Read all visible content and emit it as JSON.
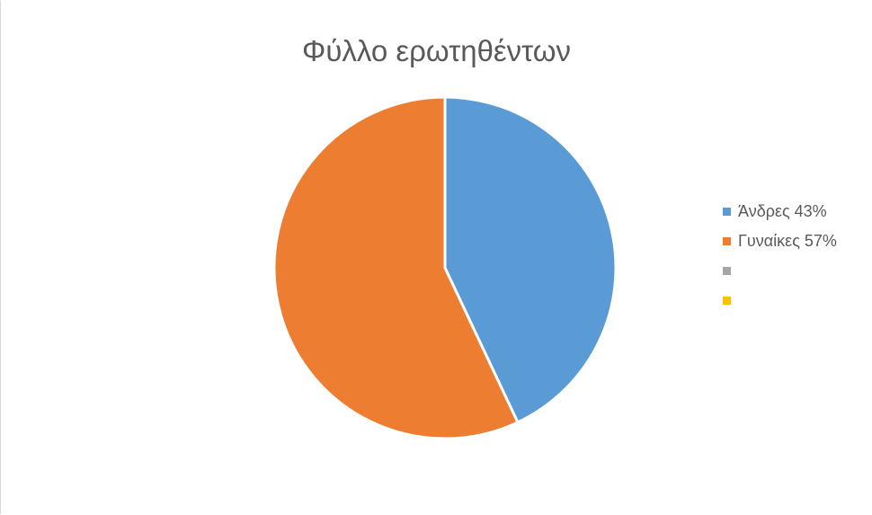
{
  "chart_data": {
    "type": "pie",
    "title": "Φύλλο ερωτηθέντων",
    "legend_position": "right",
    "slices": [
      {
        "label": "Άνδρες 43%",
        "value": 43,
        "color": "#5b9bd5"
      },
      {
        "label": "Γυναίκες 57%",
        "value": 57,
        "color": "#ed7d31"
      },
      {
        "label": "",
        "value": 0,
        "color": "#a5a5a5"
      },
      {
        "label": "",
        "value": 0,
        "color": "#ffc000"
      }
    ]
  }
}
